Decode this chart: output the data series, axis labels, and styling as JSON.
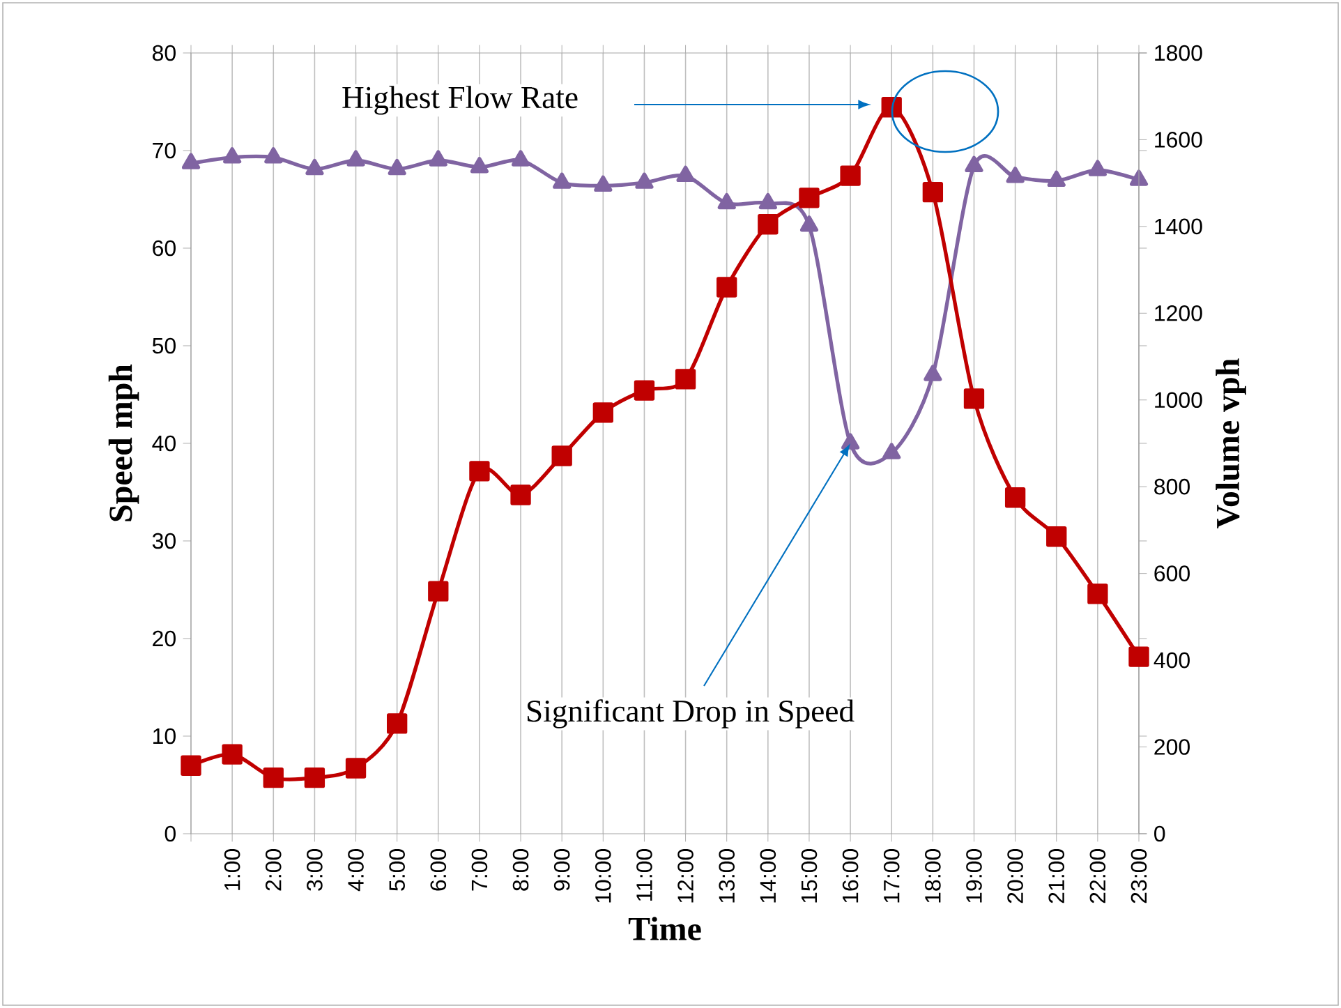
{
  "chart_data": {
    "type": "line",
    "xlabel": "Time",
    "ylabel": "Speed mph",
    "y2label": "Volume vph",
    "categories": [
      null,
      "1:00",
      "2:00",
      "3:00",
      "4:00",
      "5:00",
      "6:00",
      "7:00",
      "8:00",
      "9:00",
      "10:00",
      "11:00",
      "12:00",
      "13:00",
      "14:00",
      "15:00",
      "16:00",
      "17:00",
      "18:00",
      "19:00",
      "20:00",
      "21:00",
      "22:00",
      "23:00"
    ],
    "series": [
      {
        "color": "#8064a2",
        "marker": "triangle",
        "axis": "y",
        "values": [
          68.7,
          69.3,
          69.3,
          68.1,
          69,
          68.1,
          69,
          68.3,
          69,
          66.7,
          66.4,
          66.7,
          67.4,
          64.6,
          64.6,
          62.3,
          40,
          39,
          47,
          68.4,
          67.3,
          66.9,
          68,
          67
        ]
      },
      {
        "color": "#c00000",
        "marker": "square",
        "axis": "y2",
        "values": [
          157,
          183,
          129,
          129,
          151,
          254,
          559,
          836,
          781,
          871,
          971,
          1022,
          1048,
          1260,
          1405,
          1466,
          1517,
          1675,
          1479,
          1003,
          775,
          685,
          553,
          408
        ]
      }
    ],
    "ylim": [
      0,
      80
    ],
    "yticks": [
      0,
      10,
      20,
      30,
      40,
      50,
      60,
      70,
      80
    ],
    "y2lim": [
      0,
      1800
    ],
    "y2ticks": [
      0,
      200,
      400,
      600,
      800,
      1000,
      1200,
      1400,
      1600,
      1800
    ],
    "grid": "x",
    "annotations": [
      "Highest Flow Rate",
      {
        "text": "Significant Drop in Speed",
        "x": "16:00",
        "y": 40
      }
    ]
  }
}
